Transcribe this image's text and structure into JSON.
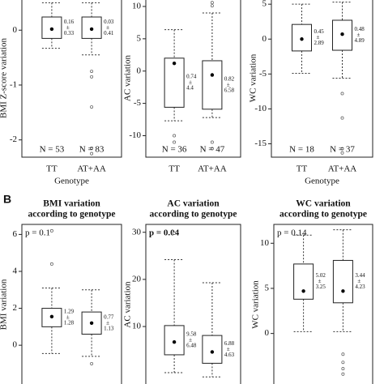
{
  "panel_label": "B",
  "chart_data": [
    {
      "type": "box",
      "ylabel": "BMI Z-score variation",
      "xlabel": "Genotype",
      "categories": [
        "TT",
        "AT+AA"
      ],
      "ylim": [
        -2.3,
        0.55
      ],
      "yticks": [
        0,
        -1,
        -2
      ],
      "separator": "±",
      "boxes": [
        {
          "low": -0.33,
          "q1": -0.15,
          "mean": 0.02,
          "q3": 0.24,
          "high": 0.5,
          "outliers": [],
          "label_mean": 0.16,
          "label_sd": 0.33,
          "n_label": "N = 53"
        },
        {
          "low": -0.45,
          "q1": -0.15,
          "mean": 0.02,
          "q3": 0.24,
          "high": 0.5,
          "outliers": [
            -0.75,
            -0.85,
            -1.4,
            -2.15,
            -2.25
          ],
          "label_mean": 0.03,
          "label_sd": 0.41,
          "n_label": "N = 83"
        }
      ]
    },
    {
      "type": "box",
      "ylabel": "AC variation",
      "categories": [
        "TT",
        "AT+AA"
      ],
      "ylim": [
        -13.2,
        11
      ],
      "yticks": [
        10,
        5,
        0,
        -5,
        -10
      ],
      "separator": "±",
      "boxes": [
        {
          "low": -7.7,
          "q1": -5.6,
          "mean": 1.2,
          "q3": 2,
          "high": 6.4,
          "outliers": [
            -10,
            -11
          ],
          "label_mean": 0.74,
          "label_sd": 4.4,
          "n_label": "N = 36"
        },
        {
          "low": -7.2,
          "q1": -5.9,
          "mean": -0.6,
          "q3": 1.6,
          "high": 9,
          "outliers": [
            10.6,
            10.1,
            -11,
            -12
          ],
          "label_mean": 0.82,
          "label_sd": 6.58,
          "n_label": "N = 47"
        }
      ]
    },
    {
      "type": "box",
      "ylabel": "WC variation",
      "xlabel": "Genotype",
      "categories": [
        "TT",
        "AT+AA"
      ],
      "ylim": [
        -16.8,
        5.6
      ],
      "yticks": [
        5,
        0,
        -5,
        -10,
        -15
      ],
      "separator": "±",
      "boxes": [
        {
          "low": -4.9,
          "q1": -1.7,
          "mean": 0,
          "q3": 2.1,
          "high": 5,
          "outliers": [],
          "label_mean": 0.45,
          "label_sd": 2.89,
          "n_label": "N = 18"
        },
        {
          "low": -5.6,
          "q1": -1.6,
          "mean": 0.7,
          "q3": 2.7,
          "high": 5.3,
          "outliers": [
            -7.8,
            -11.3,
            -15.7,
            -16.3
          ],
          "label_mean": 0.48,
          "label_sd": 4.89,
          "n_label": "N = 37"
        }
      ]
    },
    {
      "type": "box",
      "title": [
        "BMI variation",
        "according to genotype"
      ],
      "ylabel": "BMI variation",
      "annotation": "p = 0.1",
      "annotation_bold": false,
      "ylim": [
        -2.1,
        6.5
      ],
      "yticks": [
        6,
        4,
        2,
        0
      ],
      "separator": "±",
      "boxes": [
        {
          "low": -0.45,
          "q1": 1,
          "mean": 1.55,
          "q3": 2,
          "high": 3.1,
          "outliers": [
            6.2,
            4.4
          ],
          "label_mean": 1.29,
          "label_sd": 1.28
        },
        {
          "low": -0.6,
          "q1": 0.6,
          "mean": 1.2,
          "q3": 1.8,
          "high": 3,
          "outliers": [
            -1
          ],
          "label_mean": 0.77,
          "label_sd": 1.13
        }
      ]
    },
    {
      "type": "box",
      "title": [
        "AC variation",
        "according to genotype"
      ],
      "ylabel": "AC variation",
      "annotation": "p = 0.04",
      "annotation_bold": true,
      "ylim": [
        -2.2,
        31.5
      ],
      "yticks": [
        30,
        20,
        10
      ],
      "separator": "±",
      "boxes": [
        {
          "low": 0.2,
          "q1": 4,
          "mean": 6.7,
          "q3": 10.2,
          "high": 24.2,
          "outliers": [
            29.8
          ],
          "label_mean": 9.58,
          "label_sd": 6.48
        },
        {
          "low": -0.7,
          "q1": 2.2,
          "mean": 4.6,
          "q3": 8.1,
          "high": 19.3,
          "outliers": [],
          "label_mean": 6.88,
          "label_sd": 4.63
        }
      ]
    },
    {
      "type": "box",
      "title": [
        "WC variation",
        "according to genotype"
      ],
      "ylabel": "WC variation",
      "annotation": "p = 0.14",
      "annotation_bold": false,
      "ylim": [
        -5.6,
        12
      ],
      "yticks": [
        10,
        5,
        0
      ],
      "separator": "±",
      "boxes": [
        {
          "low": 0.2,
          "q1": 3.8,
          "mean": 4.7,
          "q3": 7.7,
          "high": 10.9,
          "outliers": [],
          "label_mean": 5.02,
          "label_sd": 3.25
        },
        {
          "low": 0.2,
          "q1": 3.4,
          "mean": 4.7,
          "q3": 8.1,
          "high": 11.5,
          "outliers": [
            -2.3,
            -3.2,
            -3.9,
            -4.5
          ],
          "label_mean": 3.44,
          "label_sd": 4.23
        }
      ]
    }
  ]
}
